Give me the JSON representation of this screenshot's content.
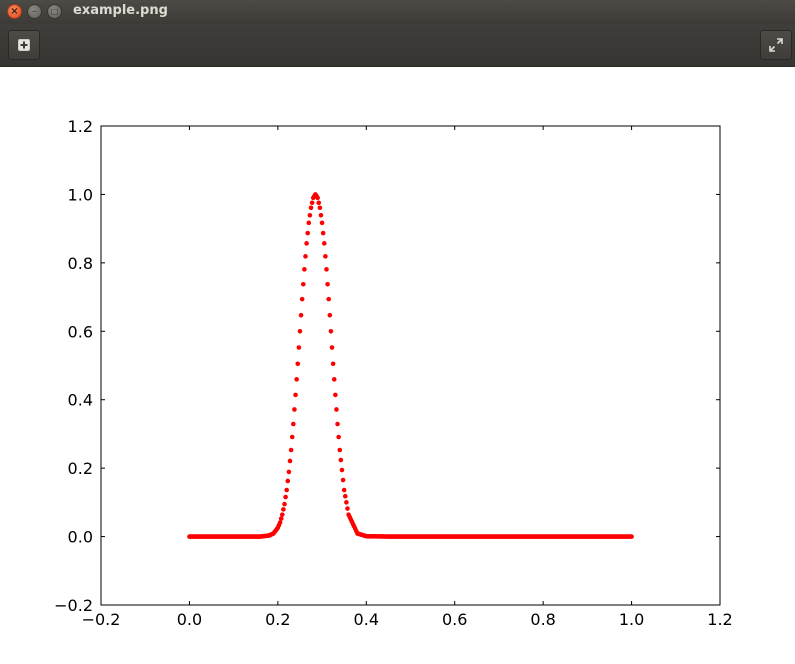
{
  "window": {
    "title": "example.png",
    "close_glyph": "×",
    "min_glyph": "–",
    "max_glyph": "□"
  },
  "toolbar": {
    "left_icon": "add-icon",
    "right_icon": "fullscreen-icon"
  },
  "colors": {
    "titlebar": "#3c3b37",
    "close_button": "#e0461c",
    "series": "#ff0000"
  },
  "chart_data": {
    "type": "scatter",
    "title": "",
    "xlabel": "",
    "ylabel": "",
    "xlim": [
      -0.2,
      1.2
    ],
    "ylim": [
      -0.2,
      1.2
    ],
    "xticks": [
      "−0.2",
      "0.0",
      "0.2",
      "0.4",
      "0.6",
      "0.8",
      "1.0",
      "1.2"
    ],
    "yticks": [
      "−0.2",
      "0.0",
      "0.2",
      "0.4",
      "0.6",
      "0.8",
      "1.0",
      "1.2"
    ],
    "grid": false,
    "series": [
      {
        "color": "#ff0000",
        "marker": "circle",
        "x": [
          0.0,
          0.02,
          0.04,
          0.06,
          0.08,
          0.1,
          0.12,
          0.14,
          0.16,
          0.18,
          0.19,
          0.2,
          0.205,
          0.21,
          0.215,
          0.22,
          0.225,
          0.23,
          0.235,
          0.24,
          0.245,
          0.25,
          0.255,
          0.26,
          0.265,
          0.27,
          0.275,
          0.28,
          0.285,
          0.29,
          0.295,
          0.3,
          0.305,
          0.31,
          0.315,
          0.32,
          0.325,
          0.33,
          0.335,
          0.34,
          0.35,
          0.36,
          0.38,
          0.4,
          0.45,
          0.5,
          0.55,
          0.6,
          0.65,
          0.7,
          0.75,
          0.8,
          0.85,
          0.9,
          0.95,
          1.0
        ],
        "y": [
          0.0,
          0.0,
          0.0,
          0.0,
          0.0,
          0.0,
          0.0,
          0.0,
          0.0,
          0.003,
          0.009,
          0.026,
          0.041,
          0.064,
          0.095,
          0.136,
          0.189,
          0.253,
          0.329,
          0.414,
          0.505,
          0.6,
          0.694,
          0.781,
          0.857,
          0.917,
          0.961,
          0.99,
          1.0,
          0.99,
          0.961,
          0.917,
          0.857,
          0.781,
          0.694,
          0.6,
          0.505,
          0.414,
          0.329,
          0.253,
          0.136,
          0.064,
          0.009,
          0.001,
          0.0,
          0.0,
          0.0,
          0.0,
          0.0,
          0.0,
          0.0,
          0.0,
          0.0,
          0.0,
          0.0,
          0.0
        ]
      }
    ]
  }
}
